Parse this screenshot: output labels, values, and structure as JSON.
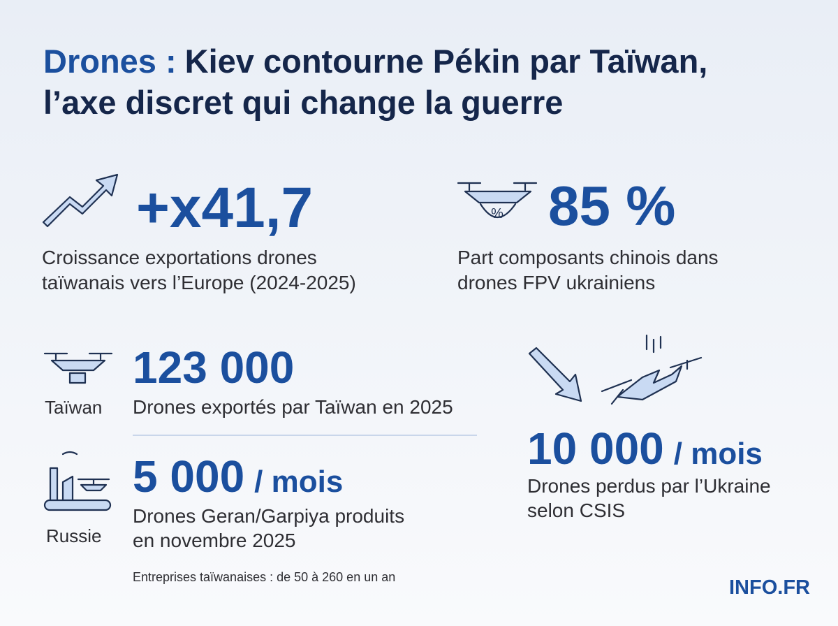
{
  "title": {
    "highlight": "Drones :",
    "line1": "Kiev contourne Pékin par Taïwan,",
    "line2": "l’axe discret qui change la guerre"
  },
  "stats": [
    {
      "value": "+x41,7",
      "description": [
        "Croissance exportations drones",
        "taïwanais vers l’Europe (2024-2025)"
      ]
    },
    {
      "value": "85 %",
      "description": [
        "Part composants chinois dans",
        "drones FPV ukrainiens"
      ]
    },
    {
      "label": "Taïwan",
      "value": "123 000",
      "description": [
        "Drones exportés par Taïwan en 2025"
      ]
    },
    {
      "label": "Russie",
      "value": "5 000",
      "unit": "/ mois",
      "description": [
        "Drones Geran/Garpiya produits",
        "en novembre 2025"
      ]
    },
    {
      "value": "10 000",
      "unit": "/ mois",
      "description": [
        "Drones perdus par l’Ukraine",
        "selon CSIS"
      ]
    }
  ],
  "footnote": "Entreprises taïwanaises : de 50 à 260 en un an",
  "brand": "INFO.FR"
}
